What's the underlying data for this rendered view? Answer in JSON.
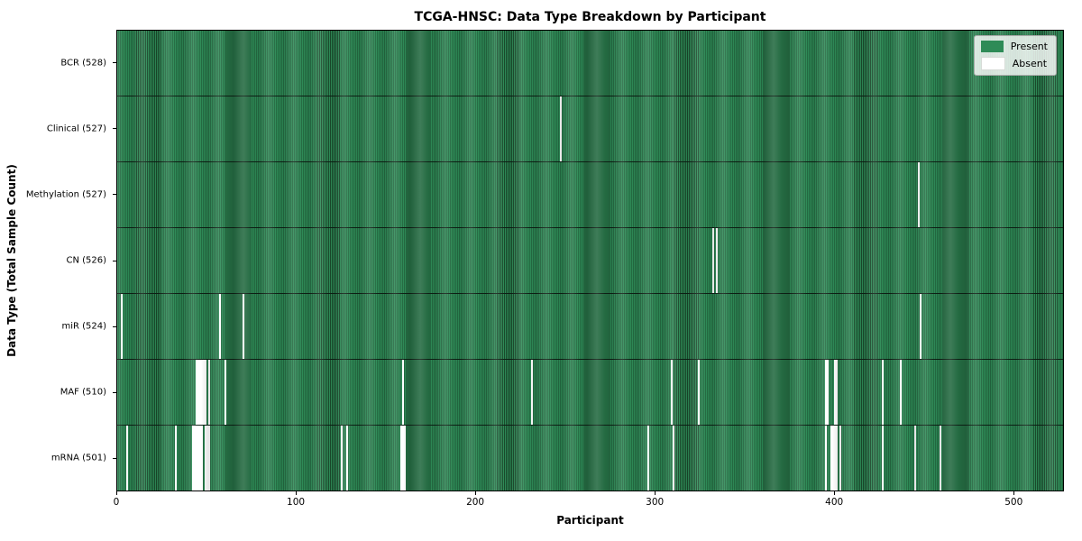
{
  "title": "TCGA-HNSC: Data Type Breakdown by Participant",
  "axes": {
    "x_label": "Participant",
    "y_label": "Data Type (Total Sample Count)"
  },
  "legend": {
    "items": [
      {
        "label": "Present",
        "color": "#2e8b57"
      },
      {
        "label": "Absent",
        "color": "#ffffff"
      }
    ]
  },
  "chart_data": {
    "type": "heatmap",
    "title": "TCGA-HNSC: Data Type Breakdown by Participant",
    "xlabel": "Participant",
    "ylabel": "Data Type (Total Sample Count)",
    "x_ticks": [
      0,
      100,
      200,
      300,
      400,
      500
    ],
    "x_range": [
      0,
      528
    ],
    "n_participants": 528,
    "legend_position": "upper right",
    "grid": false,
    "rows": [
      {
        "label": "BCR (528)",
        "total": 528,
        "absent_participants": []
      },
      {
        "label": "Clinical (527)",
        "total": 527,
        "absent_participants": [
          247
        ]
      },
      {
        "label": "Methylation (527)",
        "total": 527,
        "absent_participants": [
          447
        ]
      },
      {
        "label": "CN (526)",
        "total": 526,
        "absent_participants": [
          332,
          334
        ]
      },
      {
        "label": "miR (524)",
        "total": 524,
        "absent_participants": [
          2,
          57,
          70,
          448
        ]
      },
      {
        "label": "MAF (510)",
        "total": 510,
        "absent_participants": [
          44,
          45,
          46,
          47,
          48,
          49,
          51,
          60,
          159,
          231,
          309,
          324,
          395,
          396,
          400,
          401,
          427,
          437
        ]
      },
      {
        "label": "mRNA (501)",
        "total": 501,
        "absent_participants": [
          5,
          32,
          42,
          43,
          44,
          45,
          46,
          47,
          49,
          50,
          51,
          125,
          128,
          158,
          159,
          160,
          296,
          310,
          395,
          398,
          399,
          400,
          401,
          403,
          427,
          445,
          459
        ]
      }
    ],
    "colors": {
      "present": "#2e8b57",
      "present_edge": "#1a4a2c",
      "absent": "#ffffff"
    }
  }
}
